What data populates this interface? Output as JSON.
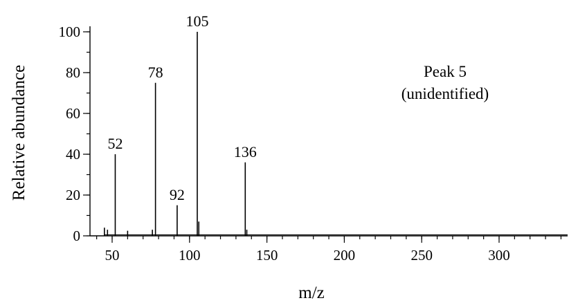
{
  "chart_data": {
    "type": "bar",
    "title": "",
    "xlabel": "m/z",
    "ylabel": "Relative abundance",
    "xlim": [
      35,
      345
    ],
    "ylim": [
      0,
      100
    ],
    "x_ticks": [
      50,
      100,
      150,
      200,
      250,
      300
    ],
    "x_minor_step": 10,
    "y_ticks": [
      0,
      20,
      40,
      60,
      80,
      100
    ],
    "y_minor_step": 10,
    "grid": false,
    "annotation_lines": [
      "Peak 5",
      "(unidentified)"
    ],
    "peaks": [
      {
        "mz": 45,
        "abundance": 4
      },
      {
        "mz": 47,
        "abundance": 3
      },
      {
        "mz": 52,
        "abundance": 40,
        "label": "52"
      },
      {
        "mz": 60,
        "abundance": 2.5
      },
      {
        "mz": 76,
        "abundance": 3
      },
      {
        "mz": 78,
        "abundance": 75,
        "label": "78"
      },
      {
        "mz": 92,
        "abundance": 15,
        "label": "92"
      },
      {
        "mz": 105,
        "abundance": 100,
        "label": "105"
      },
      {
        "mz": 106,
        "abundance": 7
      },
      {
        "mz": 136,
        "abundance": 36,
        "label": "136"
      },
      {
        "mz": 137,
        "abundance": 3
      }
    ]
  }
}
